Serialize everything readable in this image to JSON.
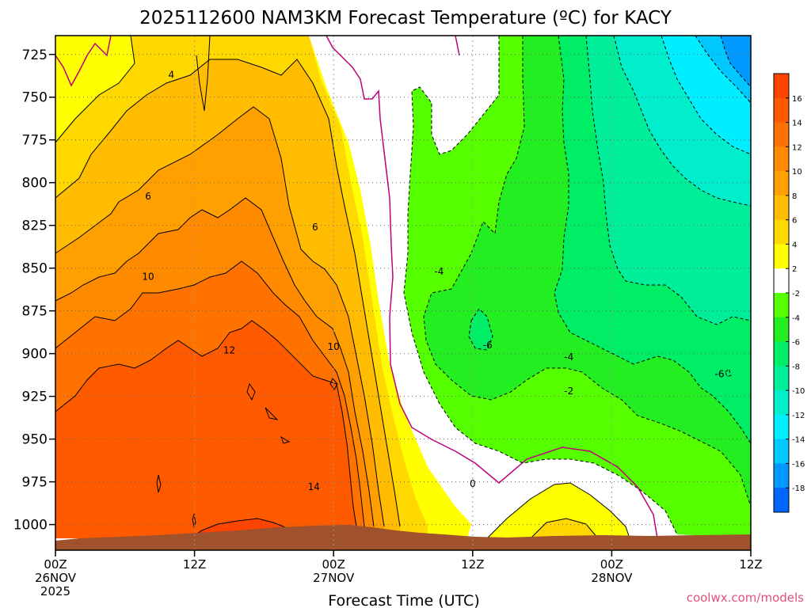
{
  "chart_data": {
    "type": "heatmap",
    "title": "2025112600 NAM3KM Forecast Temperature (ºC) for KACY",
    "xlabel": "Forecast Time (UTC)",
    "ylabel": "",
    "credit": "coolwx.com/models",
    "y_ticks": [
      725,
      750,
      775,
      800,
      825,
      850,
      875,
      900,
      925,
      950,
      975,
      1000
    ],
    "ylim": [
      1015,
      714
    ],
    "xlim": [
      0,
      60
    ],
    "x_ticks": [
      {
        "hour": 0,
        "lines": [
          "00Z",
          "26NOV",
          "2025"
        ]
      },
      {
        "hour": 12,
        "lines": [
          "12Z"
        ]
      },
      {
        "hour": 24,
        "lines": [
          "00Z",
          "27NOV"
        ]
      },
      {
        "hour": 36,
        "lines": [
          "12Z"
        ]
      },
      {
        "hour": 48,
        "lines": [
          "00Z",
          "28NOV"
        ]
      },
      {
        "hour": 60,
        "lines": [
          "12Z"
        ]
      }
    ],
    "colorbar": {
      "levels": [
        16,
        14,
        12,
        10,
        8,
        6,
        4,
        2,
        -2,
        -4,
        -6,
        -8,
        -10,
        -12,
        -14,
        -16,
        -18
      ],
      "colors": [
        "#ff4400",
        "#ff5a00",
        "#ff7200",
        "#ff8a00",
        "#ffa000",
        "#ffbc00",
        "#ffd800",
        "#ffff00",
        "#ffffff",
        "#55ff00",
        "#22ee22",
        "#00ee66",
        "#00ee99",
        "#00eecc",
        "#00eeff",
        "#00c8ff",
        "#0099ff",
        "#0066ff"
      ]
    },
    "contour_labels": [
      {
        "text": "4",
        "hour": 10,
        "pressure": 737
      },
      {
        "text": "6",
        "hour": 8,
        "pressure": 808
      },
      {
        "text": "6",
        "hour": 22.4,
        "pressure": 826
      },
      {
        "text": "10",
        "hour": 8,
        "pressure": 855
      },
      {
        "text": "12",
        "hour": 15,
        "pressure": 898
      },
      {
        "text": "10",
        "hour": 24,
        "pressure": 896
      },
      {
        "text": "14",
        "hour": 22.3,
        "pressure": 978
      },
      {
        "text": "0",
        "hour": 36,
        "pressure": 976
      },
      {
        "text": "-4",
        "hour": 33.1,
        "pressure": 852
      },
      {
        "text": "-6",
        "hour": 37.3,
        "pressure": 895
      },
      {
        "text": "-4",
        "hour": 44.3,
        "pressure": 902
      },
      {
        "text": "-2",
        "hour": 44.3,
        "pressure": 922
      },
      {
        "text": "-6",
        "hour": 57.3,
        "pressure": 912
      }
    ],
    "regions": [
      {
        "name": "zone-yellow-2-4",
        "value": 3,
        "color": "#ffff00"
      },
      {
        "name": "zone-4-6",
        "value": 5,
        "color": "#ffd800"
      },
      {
        "name": "zone-6-8",
        "value": 7,
        "color": "#ffbc00"
      },
      {
        "name": "zone-8-10",
        "value": 9,
        "color": "#ffa000"
      },
      {
        "name": "zone-10-12",
        "value": 11,
        "color": "#ff8a00"
      },
      {
        "name": "zone-12-14",
        "value": 13,
        "color": "#ff7200"
      },
      {
        "name": "zone-14-16",
        "value": 15,
        "color": "#ff5a00"
      },
      {
        "name": "zone-green-m2-m4",
        "value": -3,
        "color": "#55ff00"
      },
      {
        "name": "zone-m4-m6",
        "value": -5,
        "color": "#22ee22"
      },
      {
        "name": "zone-m6-m8",
        "value": -7,
        "color": "#00ee66"
      },
      {
        "name": "zone-m8-m10",
        "value": -9,
        "color": "#00ee99"
      },
      {
        "name": "zone-m10-m12",
        "value": -11,
        "color": "#00eecc"
      },
      {
        "name": "zone-m12-m14",
        "value": -13,
        "color": "#00eeff"
      },
      {
        "name": "zone-m14-m16",
        "value": -15,
        "color": "#00c8ff"
      },
      {
        "name": "zone-m16-m18",
        "value": -17,
        "color": "#0099ff"
      },
      {
        "name": "surface-terrain",
        "value": null,
        "color": "#a0522d"
      }
    ]
  }
}
